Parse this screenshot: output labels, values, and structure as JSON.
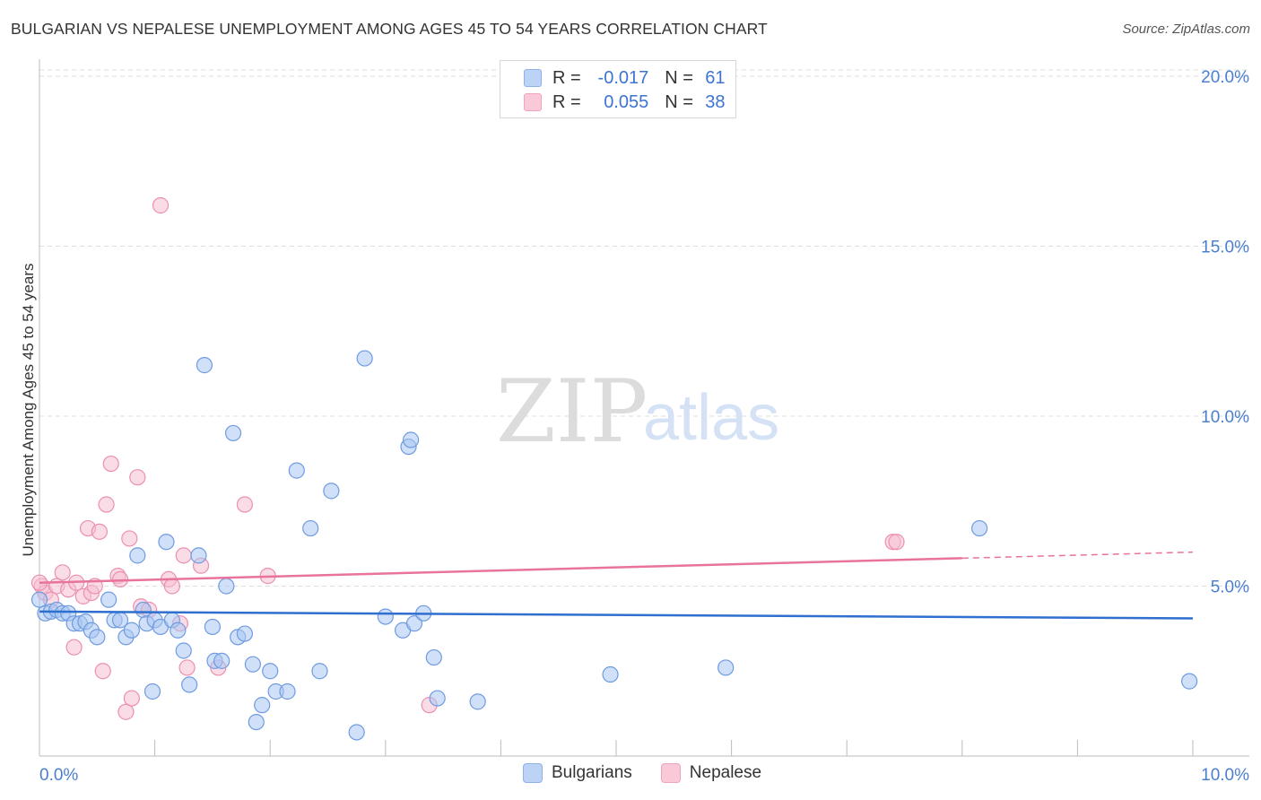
{
  "header": {
    "title": "BULGARIAN VS NEPALESE UNEMPLOYMENT AMONG AGES 45 TO 54 YEARS CORRELATION CHART",
    "source": "Source: ZipAtlas.com"
  },
  "watermark": {
    "zip": "ZIP",
    "atlas": "atlas"
  },
  "legend": {
    "rows": [
      {
        "r_label": "R =",
        "r_value": "-0.017",
        "n_label": "N =",
        "n_value": "61",
        "color": "#9dbdf0"
      },
      {
        "r_label": "R =",
        "r_value": "0.055",
        "n_label": "N =",
        "n_value": "38",
        "color": "#f4a9c2"
      }
    ]
  },
  "bottom_legend": {
    "bulgarians": "Bulgarians",
    "nepalese": "Nepalese"
  },
  "colors": {
    "blue_fill": "#a9c6f2",
    "blue_stroke": "#6f9be0",
    "blue_line": "#2e6fcf",
    "pink_fill": "#f6bfd1",
    "pink_stroke": "#ec8fb0",
    "pink_line": "#e8739c",
    "grid": "#dddddd",
    "tick_text": "#4a7fd0"
  },
  "chart_data": {
    "type": "scatter",
    "title": "BULGARIAN VS NEPALESE UNEMPLOYMENT AMONG AGES 45 TO 54 YEARS CORRELATION CHART",
    "xlabel": "",
    "ylabel": "Unemployment Among Ages 45 to 54 years",
    "xlim": [
      0,
      10
    ],
    "ylim": [
      0,
      20.5
    ],
    "x_tick_labels": [
      "0.0%",
      "10.0%"
    ],
    "y_ticks": [
      5,
      10,
      15,
      20
    ],
    "y_tick_labels": [
      "5.0%",
      "10.0%",
      "15.0%",
      "20.0%"
    ],
    "series": [
      {
        "name": "Bulgarians",
        "trend": [
          [
            0,
            4.25
          ],
          [
            10,
            4.05
          ]
        ],
        "trend_dashed_from": null,
        "points": [
          [
            0.05,
            4.2
          ],
          [
            0.1,
            4.25
          ],
          [
            0.15,
            4.3
          ],
          [
            0.2,
            4.2
          ],
          [
            0.25,
            4.2
          ],
          [
            0.3,
            3.9
          ],
          [
            0.35,
            3.9
          ],
          [
            0.4,
            3.95
          ],
          [
            0.45,
            3.7
          ],
          [
            0.5,
            3.5
          ],
          [
            0.6,
            4.6
          ],
          [
            0.65,
            4.0
          ],
          [
            0.7,
            4.0
          ],
          [
            0.75,
            3.5
          ],
          [
            0.8,
            3.7
          ],
          [
            0.85,
            5.9
          ],
          [
            0.9,
            4.3
          ],
          [
            0.93,
            3.9
          ],
          [
            0.98,
            1.9
          ],
          [
            1.0,
            4.0
          ],
          [
            1.05,
            3.8
          ],
          [
            1.1,
            6.3
          ],
          [
            1.15,
            4.0
          ],
          [
            1.2,
            3.7
          ],
          [
            1.25,
            3.1
          ],
          [
            1.3,
            2.1
          ],
          [
            1.38,
            5.9
          ],
          [
            1.43,
            11.5
          ],
          [
            1.5,
            3.8
          ],
          [
            1.52,
            2.8
          ],
          [
            1.58,
            2.8
          ],
          [
            1.62,
            5.0
          ],
          [
            1.68,
            9.5
          ],
          [
            1.72,
            3.5
          ],
          [
            1.78,
            3.6
          ],
          [
            1.85,
            2.7
          ],
          [
            1.88,
            1.0
          ],
          [
            1.93,
            1.5
          ],
          [
            2.0,
            2.5
          ],
          [
            2.05,
            1.9
          ],
          [
            2.15,
            1.9
          ],
          [
            2.23,
            8.4
          ],
          [
            2.35,
            6.7
          ],
          [
            2.43,
            2.5
          ],
          [
            2.53,
            7.8
          ],
          [
            2.75,
            0.7
          ],
          [
            2.82,
            11.7
          ],
          [
            3.0,
            4.1
          ],
          [
            3.15,
            3.7
          ],
          [
            3.2,
            9.1
          ],
          [
            3.22,
            9.3
          ],
          [
            3.25,
            3.9
          ],
          [
            3.33,
            4.2
          ],
          [
            3.42,
            2.9
          ],
          [
            3.45,
            1.7
          ],
          [
            3.8,
            1.6
          ],
          [
            4.95,
            2.4
          ],
          [
            5.95,
            2.6
          ],
          [
            8.15,
            6.7
          ],
          [
            9.97,
            2.2
          ],
          [
            0.0,
            4.6
          ]
        ]
      },
      {
        "name": "Nepalese",
        "trend": [
          [
            0,
            5.1
          ],
          [
            10,
            6.0
          ]
        ],
        "trend_dashed_from": 8.0,
        "points": [
          [
            0.02,
            5.0
          ],
          [
            0.05,
            4.8
          ],
          [
            0.1,
            4.6
          ],
          [
            0.15,
            5.0
          ],
          [
            0.2,
            5.4
          ],
          [
            0.25,
            4.9
          ],
          [
            0.3,
            3.2
          ],
          [
            0.32,
            5.1
          ],
          [
            0.38,
            4.7
          ],
          [
            0.42,
            6.7
          ],
          [
            0.45,
            4.8
          ],
          [
            0.48,
            5.0
          ],
          [
            0.52,
            6.6
          ],
          [
            0.55,
            2.5
          ],
          [
            0.58,
            7.4
          ],
          [
            0.62,
            8.6
          ],
          [
            0.68,
            5.3
          ],
          [
            0.7,
            5.2
          ],
          [
            0.75,
            1.3
          ],
          [
            0.78,
            6.4
          ],
          [
            0.8,
            1.7
          ],
          [
            0.85,
            8.2
          ],
          [
            0.88,
            4.4
          ],
          [
            0.95,
            4.3
          ],
          [
            1.05,
            16.2
          ],
          [
            1.12,
            5.2
          ],
          [
            1.15,
            5.0
          ],
          [
            1.22,
            3.9
          ],
          [
            1.25,
            5.9
          ],
          [
            1.28,
            2.6
          ],
          [
            1.4,
            5.6
          ],
          [
            1.55,
            2.6
          ],
          [
            1.78,
            7.4
          ],
          [
            1.98,
            5.3
          ],
          [
            3.38,
            1.5
          ],
          [
            7.4,
            6.3
          ],
          [
            7.43,
            6.3
          ],
          [
            0.0,
            5.1
          ]
        ]
      }
    ]
  }
}
